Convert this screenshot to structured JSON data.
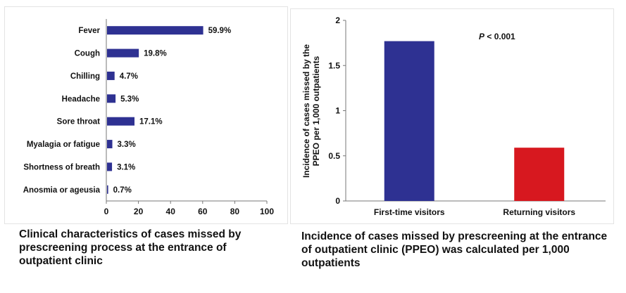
{
  "chart_data": [
    {
      "type": "bar",
      "orientation": "horizontal",
      "categories": [
        "Fever",
        "Cough",
        "Chilling",
        "Headache",
        "Sore throat",
        "Myalagia or fatigue",
        "Shortness of breath",
        "Anosmia or ageusia"
      ],
      "values": [
        59.9,
        19.8,
        4.7,
        5.3,
        17.1,
        3.3,
        3.1,
        0.7
      ],
      "data_labels": [
        "59.9%",
        "19.8%",
        "4.7%",
        "5.3%",
        "17.1%",
        "3.3%",
        "3.1%",
        "0.7%"
      ],
      "xlim": [
        0,
        100
      ],
      "xticks": [
        0,
        20,
        40,
        60,
        80,
        100
      ],
      "grid": false,
      "colors": {
        "bar": "#2e3192"
      },
      "caption": "Clinical characteristics of cases missed by prescreening process at the entrance of outpatient clinic"
    },
    {
      "type": "bar",
      "orientation": "vertical",
      "categories": [
        "First-time visitors",
        "Returning visitors"
      ],
      "values": [
        1.77,
        0.59
      ],
      "ylabel_lines": [
        "Incidence of cases missed by the",
        "PPEO per 1,000 outpatients"
      ],
      "ylim": [
        0,
        2
      ],
      "yticks": [
        "0",
        "0.5",
        "1",
        "1.5",
        "2"
      ],
      "annotation": "P < 0.001",
      "grid": false,
      "colors": {
        "bars": [
          "#2e3192",
          "#d7181f"
        ]
      },
      "caption": "Incidence of cases missed by prescreening at the entrance of outpatient clinic (PPEO) was calculated per 1,000 outpatients"
    }
  ]
}
